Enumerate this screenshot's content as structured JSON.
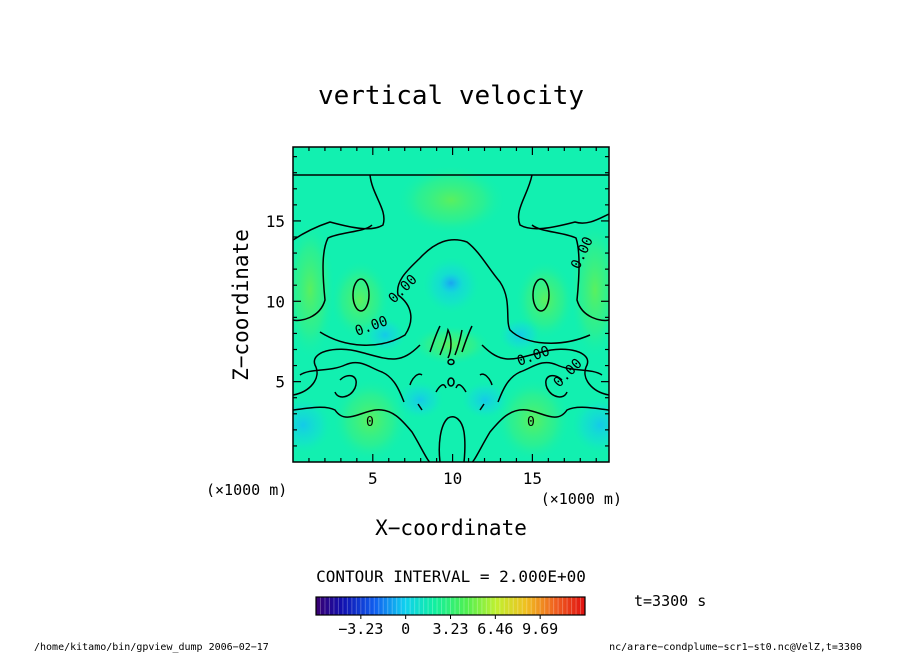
{
  "chart_data": {
    "type": "heatmap",
    "title": "vertical velocity",
    "xlabel": "X−coordinate",
    "ylabel": "Z−coordinate",
    "x_unit_label": "(×1000 m)",
    "y_unit_label": "(×1000 m)",
    "xlim": [
      0,
      19.8
    ],
    "ylim": [
      0,
      19.6
    ],
    "x_ticks": [
      "5",
      "10",
      "15"
    ],
    "y_ticks": [
      "5",
      "10",
      "15"
    ],
    "contour_interval_label": "CONTOUR INTERVAL = 2.000E+00",
    "contour_labels": [
      "0.00",
      "0.00",
      "0.00",
      "0.00",
      "0.00",
      "0"
    ],
    "colorbar": {
      "range": [
        -6.46,
        12.92
      ],
      "tick_labels": [
        "−3.23",
        "0",
        "3.23",
        "6.46",
        "9.69"
      ],
      "tick_values": [
        -3.23,
        0,
        3.23,
        6.46,
        9.69
      ]
    },
    "time_label": "t=3300 s",
    "footer_left": "/home/kitamo/bin/gpview_dump  2006−02−17",
    "footer_right": "nc/arare−condplume−scr1−st0.nc@VelZ,t=3300"
  },
  "colors": {
    "background_field": "#12f0b0",
    "contour_line": "#000000",
    "updraft_green": "#6af26a",
    "downdraft_cyan": "#18cfe8"
  }
}
